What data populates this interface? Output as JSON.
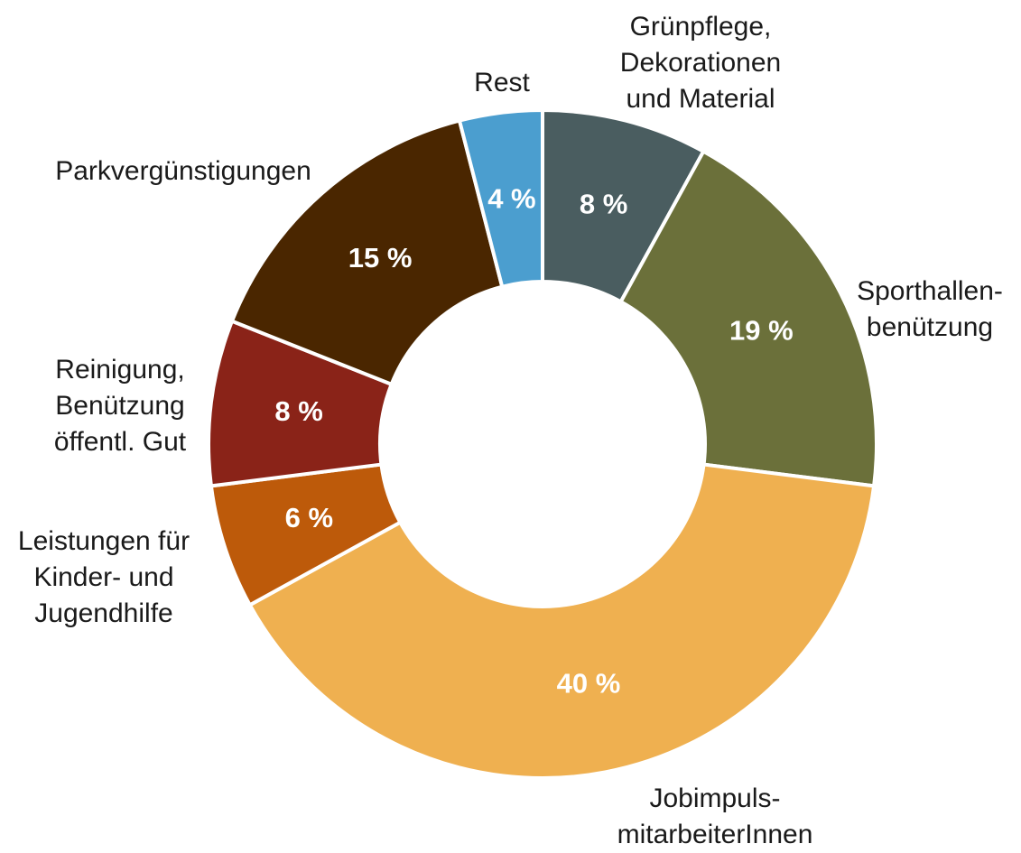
{
  "chart_data": {
    "type": "donut",
    "categories": [
      "Grünpflege,\nDekorationen\nund Material",
      "Sporthallen-\nbenützung",
      "Jobimpuls-\nmitarbeiterInnen",
      "Leistungen für\nKinder- und\nJugendhilfe",
      "Reinigung,\nBenützung\nöffentl. Gut",
      "Parkvergünstigungen",
      "Rest"
    ],
    "values": [
      8,
      19,
      40,
      6,
      8,
      15,
      4
    ],
    "value_labels": [
      "8 %",
      "19 %",
      "40 %",
      "6 %",
      "8 %",
      "15 %",
      "4 %"
    ],
    "colors": [
      "#4a5d60",
      "#6b703a",
      "#efb050",
      "#bd5a0a",
      "#8a2318",
      "#4a2600",
      "#4b9ecf"
    ]
  }
}
